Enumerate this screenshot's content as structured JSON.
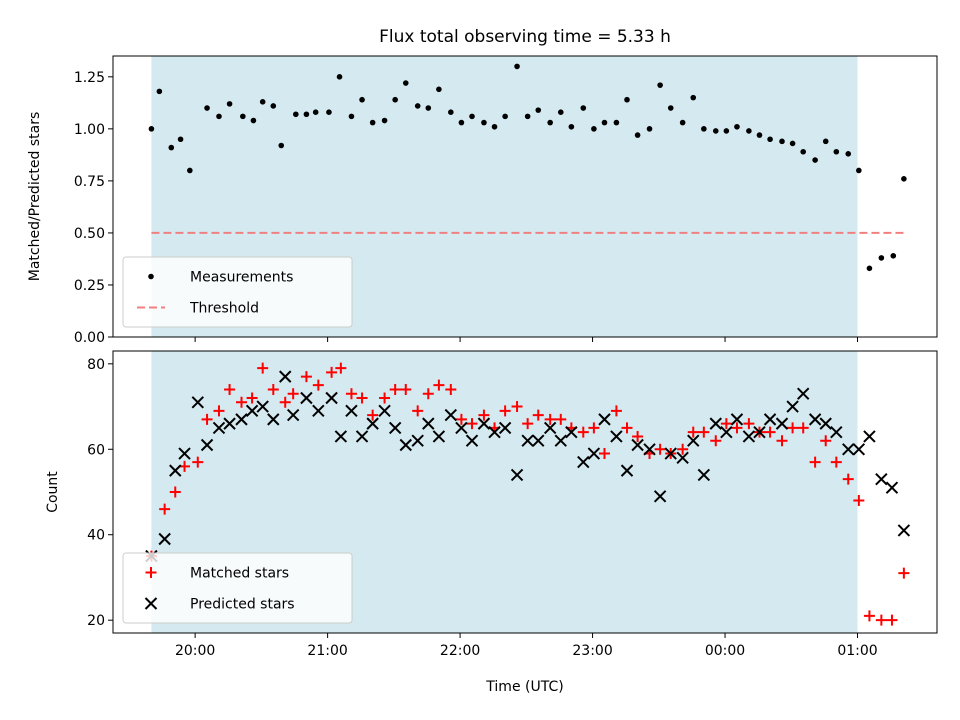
{
  "chart_data": [
    {
      "type": "scatter",
      "title": "Flux total observing time = 5.33 h",
      "xlabel": "",
      "ylabel": "Matched/Predicted stars",
      "xlim": [
        -0.62,
        5.6
      ],
      "ylim": [
        0,
        1.35
      ],
      "yticks": [
        0.0,
        0.25,
        0.5,
        0.75,
        1.0,
        1.25
      ],
      "ytick_labels": [
        "0.00",
        "0.25",
        "0.50",
        "0.75",
        "1.00",
        "1.25"
      ],
      "xticks": [
        0,
        1,
        2,
        3,
        4,
        5
      ],
      "shaded_span": [
        -0.33,
        5.0
      ],
      "shade_color": "#d4eaf0",
      "legend_position": "lower left",
      "series": [
        {
          "name": "Measurements",
          "kind": "dot",
          "color": "#000000",
          "x": [
            -0.33,
            -0.27,
            -0.18,
            -0.11,
            -0.04,
            0.09,
            0.18,
            0.26,
            0.36,
            0.44,
            0.51,
            0.59,
            0.65,
            0.76,
            0.84,
            0.91,
            1.01,
            1.09,
            1.18,
            1.26,
            1.34,
            1.43,
            1.51,
            1.59,
            1.68,
            1.76,
            1.84,
            1.93,
            2.01,
            2.09,
            2.18,
            2.26,
            2.34,
            2.43,
            2.51,
            2.59,
            2.68,
            2.76,
            2.84,
            2.93,
            3.01,
            3.09,
            3.18,
            3.26,
            3.34,
            3.43,
            3.51,
            3.59,
            3.68,
            3.76,
            3.84,
            3.93,
            4.01,
            4.09,
            4.18,
            4.26,
            4.34,
            4.43,
            4.51,
            4.59,
            4.68,
            4.76,
            4.84,
            4.93,
            5.01,
            5.09,
            5.18,
            5.27,
            5.35
          ],
          "y": [
            1.0,
            1.18,
            0.91,
            0.95,
            0.8,
            1.1,
            1.06,
            1.12,
            1.06,
            1.04,
            1.13,
            1.11,
            0.92,
            1.07,
            1.07,
            1.08,
            1.08,
            1.25,
            1.06,
            1.14,
            1.03,
            1.04,
            1.14,
            1.22,
            1.11,
            1.1,
            1.19,
            1.08,
            1.03,
            1.06,
            1.03,
            1.01,
            1.06,
            1.3,
            1.06,
            1.09,
            1.03,
            1.08,
            1.01,
            1.1,
            1.0,
            1.03,
            1.03,
            1.14,
            0.97,
            1.0,
            1.21,
            1.1,
            1.03,
            1.15,
            1.0,
            0.99,
            0.99,
            1.01,
            0.99,
            0.97,
            0.95,
            0.94,
            0.93,
            0.89,
            0.85,
            0.94,
            0.89,
            0.88,
            0.8,
            0.33,
            0.38,
            0.39,
            0.76
          ]
        },
        {
          "name": "Threshold",
          "kind": "dashed-line",
          "color": "#f08080",
          "x": [
            -0.33,
            5.35
          ],
          "y": [
            0.5,
            0.5
          ]
        }
      ]
    },
    {
      "type": "scatter",
      "title": "",
      "xlabel": "Time (UTC)",
      "ylabel": "Count",
      "xlim": [
        -0.62,
        5.6
      ],
      "ylim": [
        17,
        83
      ],
      "yticks": [
        20,
        40,
        60,
        80
      ],
      "ytick_labels": [
        "20",
        "40",
        "60",
        "80"
      ],
      "xticks": [
        0,
        1,
        2,
        3,
        4,
        5
      ],
      "xtick_labels": [
        "20:00",
        "21:00",
        "22:00",
        "23:00",
        "00:00",
        "01:00"
      ],
      "shaded_span": [
        -0.33,
        5.0
      ],
      "shade_color": "#d4eaf0",
      "legend_position": "lower left",
      "series": [
        {
          "name": "Matched stars",
          "kind": "plus",
          "color": "#ff0000",
          "x": [
            -0.33,
            -0.23,
            -0.15,
            -0.08,
            0.02,
            0.09,
            0.18,
            0.26,
            0.35,
            0.43,
            0.51,
            0.59,
            0.68,
            0.74,
            0.84,
            0.93,
            1.03,
            1.1,
            1.18,
            1.26,
            1.34,
            1.43,
            1.51,
            1.59,
            1.68,
            1.76,
            1.84,
            1.93,
            2.01,
            2.09,
            2.18,
            2.26,
            2.34,
            2.43,
            2.51,
            2.59,
            2.68,
            2.76,
            2.84,
            2.93,
            3.01,
            3.09,
            3.18,
            3.26,
            3.34,
            3.43,
            3.51,
            3.59,
            3.68,
            3.76,
            3.84,
            3.93,
            4.01,
            4.09,
            4.18,
            4.26,
            4.34,
            4.43,
            4.51,
            4.59,
            4.68,
            4.76,
            4.84,
            4.93,
            5.01,
            5.09,
            5.18,
            5.26,
            5.35
          ],
          "y": [
            35,
            46,
            50,
            56,
            57,
            67,
            69,
            74,
            71,
            72,
            79,
            74,
            71,
            73,
            77,
            75,
            78,
            79,
            73,
            72,
            68,
            72,
            74,
            74,
            69,
            73,
            75,
            74,
            67,
            66,
            68,
            65,
            69,
            70,
            66,
            68,
            67,
            67,
            65,
            64,
            65,
            59,
            69,
            65,
            63,
            59,
            60,
            59,
            60,
            64,
            64,
            62,
            66,
            65,
            66,
            64,
            64,
            62,
            65,
            65,
            57,
            62,
            57,
            53,
            48,
            21,
            20,
            20,
            31
          ]
        },
        {
          "name": "Predicted stars",
          "kind": "x",
          "color": "#000000",
          "x": [
            -0.33,
            -0.23,
            -0.15,
            -0.08,
            0.02,
            0.09,
            0.18,
            0.26,
            0.35,
            0.43,
            0.51,
            0.59,
            0.68,
            0.74,
            0.84,
            0.93,
            1.03,
            1.1,
            1.18,
            1.26,
            1.34,
            1.43,
            1.51,
            1.59,
            1.68,
            1.76,
            1.84,
            1.93,
            2.01,
            2.09,
            2.18,
            2.26,
            2.34,
            2.43,
            2.51,
            2.59,
            2.68,
            2.76,
            2.84,
            2.93,
            3.01,
            3.09,
            3.18,
            3.26,
            3.34,
            3.43,
            3.51,
            3.59,
            3.68,
            3.76,
            3.84,
            3.93,
            4.01,
            4.09,
            4.18,
            4.26,
            4.34,
            4.43,
            4.51,
            4.59,
            4.68,
            4.76,
            4.84,
            4.93,
            5.01,
            5.09,
            5.18,
            5.26,
            5.35
          ],
          "y": [
            35,
            39,
            55,
            59,
            71,
            61,
            65,
            66,
            67,
            69,
            70,
            67,
            77,
            68,
            72,
            69,
            72,
            63,
            69,
            63,
            66,
            69,
            65,
            61,
            62,
            66,
            63,
            68,
            65,
            62,
            66,
            64,
            65,
            54,
            62,
            62,
            65,
            62,
            64,
            57,
            59,
            67,
            63,
            55,
            61,
            60,
            49,
            59,
            58,
            62,
            54,
            66,
            64,
            67,
            63,
            64,
            67,
            66,
            70,
            73,
            67,
            66,
            64,
            60,
            60,
            63,
            53,
            51,
            41
          ]
        }
      ]
    }
  ]
}
